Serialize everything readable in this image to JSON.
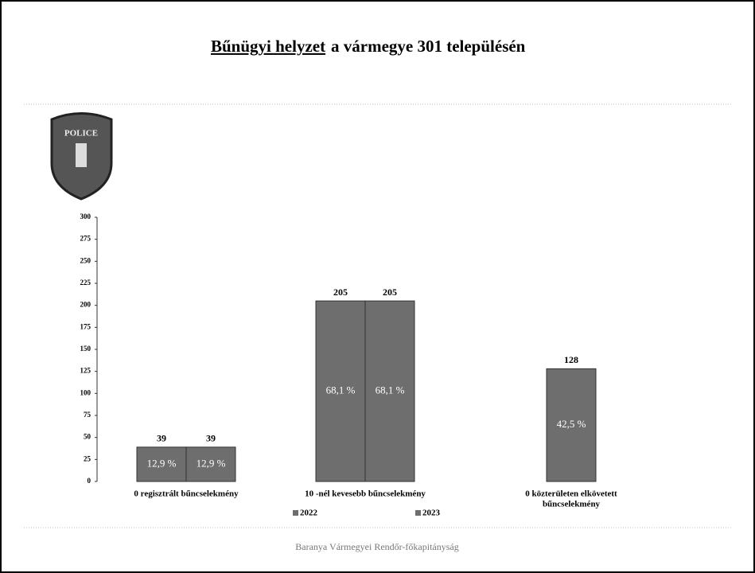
{
  "chart_data": {
    "type": "bar",
    "title_underlined": "Bűnügyi helyzet",
    "title_rest": "a vármegye 301 településén",
    "badge": "POLICE",
    "footer": "Baranya Vármegyei Rendőr-főkapitányság",
    "categories": [
      [
        "0 regisztrált bűncselekmény"
      ],
      [
        "10 -nél kevesebb bűncselekmény"
      ],
      [
        "0 közterületen elkövetett",
        "bűncselekmény"
      ]
    ],
    "series": [
      {
        "name": "2022",
        "color": "#6e6e6e",
        "values": [
          39,
          205,
          null
        ],
        "inner_labels": [
          "12,9 %",
          "68,1 %",
          null
        ]
      },
      {
        "name": "2023",
        "color": "#6e6e6e",
        "values": [
          39,
          205,
          128
        ],
        "inner_labels": [
          "12,9 %",
          "68,1 %",
          "42,5 %"
        ]
      }
    ],
    "ylim": [
      0,
      300
    ],
    "yticks": [
      0,
      25,
      50,
      75,
      100,
      125,
      150,
      175,
      200,
      225,
      250,
      275,
      300
    ]
  }
}
